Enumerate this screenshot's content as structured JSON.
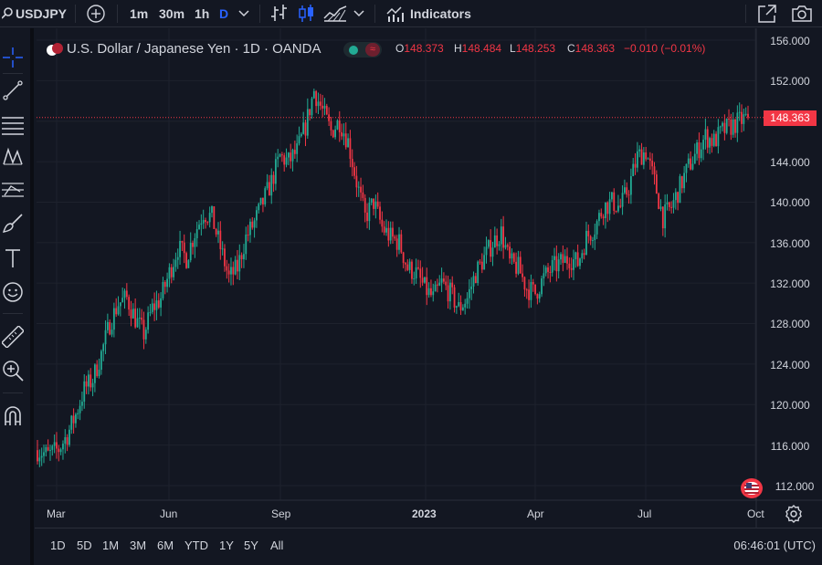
{
  "toolbar": {
    "symbol": "USDJPY",
    "intervals": [
      "1m",
      "30m",
      "1h",
      "D"
    ],
    "active_interval": "D",
    "indicators_label": "Indicators"
  },
  "legend": {
    "title": "U.S. Dollar / Japanese Yen · 1D · OANDA",
    "ohlc": [
      {
        "key": "O",
        "value": "148.373"
      },
      {
        "key": "H",
        "value": "148.484"
      },
      {
        "key": "L",
        "value": "148.253"
      },
      {
        "key": "C",
        "value": "148.363"
      }
    ],
    "change": "−0.010 (−0.01%)",
    "status_icon": "≈"
  },
  "price_axis": {
    "labels": [
      "156.000",
      "152.000",
      "148.000",
      "144.000",
      "140.000",
      "136.000",
      "132.000",
      "128.000",
      "124.000",
      "120.000",
      "116.000",
      "112.000"
    ],
    "last_price": "148.363"
  },
  "time_axis": {
    "labels": [
      {
        "text": "Mar",
        "bold": false
      },
      {
        "text": "Jun",
        "bold": false
      },
      {
        "text": "Sep",
        "bold": false
      },
      {
        "text": "2023",
        "bold": true
      },
      {
        "text": "Apr",
        "bold": false
      },
      {
        "text": "Jul",
        "bold": false
      },
      {
        "text": "Oct",
        "bold": false
      }
    ]
  },
  "bottom": {
    "ranges": [
      "1D",
      "5D",
      "1M",
      "3M",
      "6M",
      "YTD",
      "1Y",
      "5Y",
      "All"
    ],
    "clock": "06:46:01 (UTC)"
  },
  "colors": {
    "background": "#131722",
    "up": "#22ab94",
    "down": "#f23645",
    "grid": "#1e222d",
    "accent": "#2962ff"
  },
  "chart_data": {
    "type": "candlestick",
    "title": "U.S. Dollar / Japanese Yen · 1D · OANDA",
    "ylim": [
      110.5,
      157
    ],
    "last": 148.363,
    "path": [
      [
        0,
        115.5
      ],
      [
        5,
        115.0
      ],
      [
        10,
        115.6
      ],
      [
        14,
        117.0
      ],
      [
        18,
        119.0
      ],
      [
        22,
        121.5
      ],
      [
        26,
        122.5
      ],
      [
        30,
        125.0
      ],
      [
        34,
        128.0
      ],
      [
        38,
        130.0
      ],
      [
        42,
        130.5
      ],
      [
        46,
        128.5
      ],
      [
        50,
        127.0
      ],
      [
        54,
        129.5
      ],
      [
        58,
        130.5
      ],
      [
        62,
        133.0
      ],
      [
        66,
        135.5
      ],
      [
        70,
        134.5
      ],
      [
        74,
        137.0
      ],
      [
        78,
        139.0
      ],
      [
        82,
        138.5
      ],
      [
        86,
        135.5
      ],
      [
        90,
        132.5
      ],
      [
        94,
        133.5
      ],
      [
        98,
        136.5
      ],
      [
        102,
        138.0
      ],
      [
        106,
        140.0
      ],
      [
        110,
        142.0
      ],
      [
        114,
        144.5
      ],
      [
        118,
        144.0
      ],
      [
        122,
        145.0
      ],
      [
        126,
        147.5
      ],
      [
        130,
        151.0
      ],
      [
        134,
        149.0
      ],
      [
        138,
        147.0
      ],
      [
        142,
        148.0
      ],
      [
        146,
        146.0
      ],
      [
        150,
        142.0
      ],
      [
        154,
        138.5
      ],
      [
        158,
        140.0
      ],
      [
        162,
        137.5
      ],
      [
        166,
        136.5
      ],
      [
        170,
        136.0
      ],
      [
        174,
        133.5
      ],
      [
        178,
        133.0
      ],
      [
        182,
        131.5
      ],
      [
        186,
        130.5
      ],
      [
        190,
        132.0
      ],
      [
        194,
        131.0
      ],
      [
        198,
        129.5
      ],
      [
        202,
        130.5
      ],
      [
        206,
        133.0
      ],
      [
        210,
        134.5
      ],
      [
        214,
        136.0
      ],
      [
        218,
        137.0
      ],
      [
        222,
        134.0
      ],
      [
        226,
        133.5
      ],
      [
        230,
        131.5
      ],
      [
        234,
        131.0
      ],
      [
        238,
        132.5
      ],
      [
        242,
        133.5
      ],
      [
        246,
        134.0
      ],
      [
        250,
        134.5
      ],
      [
        254,
        134.0
      ],
      [
        258,
        136.5
      ],
      [
        262,
        137.5
      ],
      [
        266,
        139.5
      ],
      [
        270,
        140.0
      ],
      [
        274,
        139.5
      ],
      [
        278,
        141.5
      ],
      [
        282,
        144.5
      ],
      [
        286,
        145.0
      ],
      [
        290,
        142.0
      ],
      [
        294,
        138.5
      ],
      [
        298,
        139.5
      ],
      [
        302,
        141.5
      ],
      [
        306,
        143.5
      ],
      [
        310,
        145.0
      ],
      [
        314,
        146.5
      ],
      [
        318,
        146.0
      ],
      [
        322,
        147.0
      ],
      [
        326,
        147.5
      ],
      [
        330,
        148.0
      ],
      [
        334,
        148.36
      ]
    ]
  }
}
